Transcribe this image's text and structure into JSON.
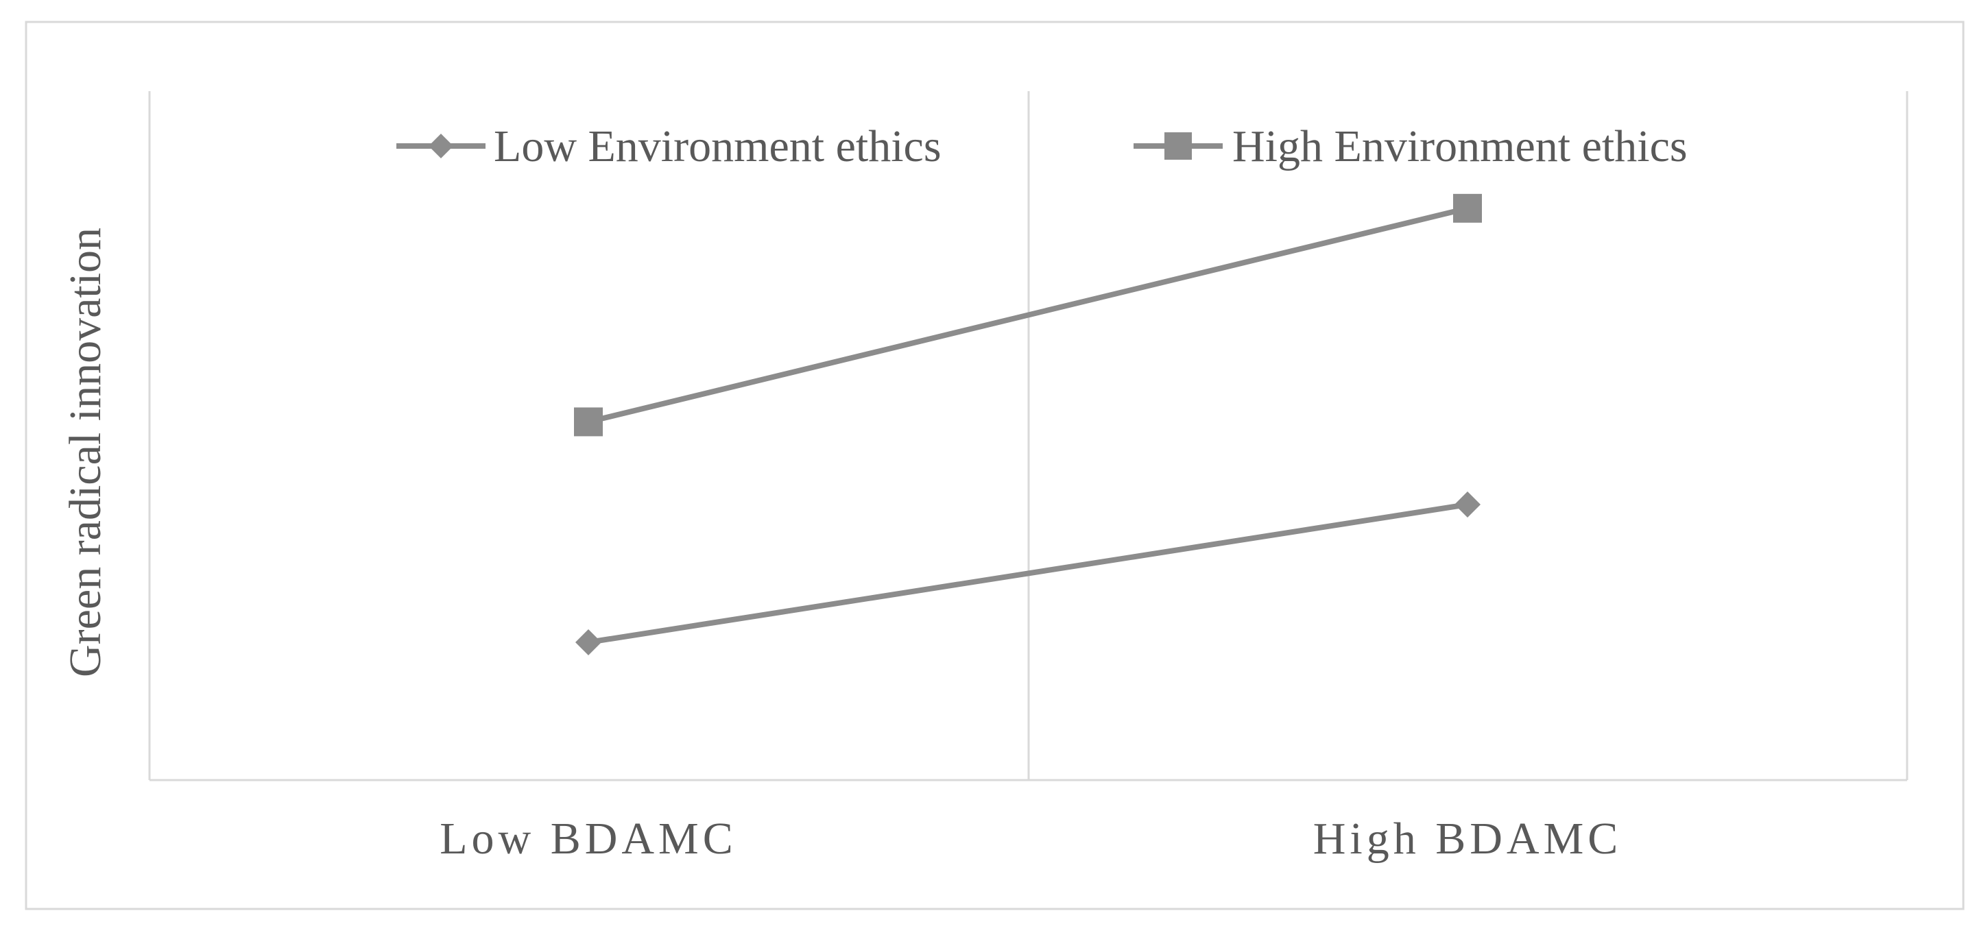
{
  "chart_data": {
    "type": "line",
    "categories": [
      "Low BDAMC",
      "High BDAMC"
    ],
    "series": [
      {
        "name": "Low Environment ethics",
        "values": [
          1.0,
          2.0
        ],
        "marker": "diamond",
        "color": "#8c8c8c"
      },
      {
        "name": "High Environment ethics",
        "values": [
          2.6,
          4.15
        ],
        "marker": "square",
        "color": "#8c8c8c"
      }
    ],
    "title": "",
    "xlabel": "",
    "ylabel": "Green radical innovation",
    "ylim": [
      0,
      5
    ],
    "y_ticks_shown": false,
    "grid": false,
    "legend_position": "top"
  }
}
